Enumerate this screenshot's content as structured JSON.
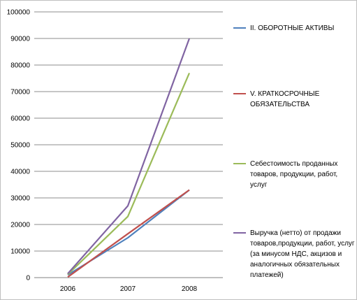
{
  "chart_data": {
    "type": "line",
    "x": [
      "2006",
      "2007",
      "2008"
    ],
    "ylim": [
      0,
      100000
    ],
    "yticks": [
      "0",
      "10000",
      "20000",
      "30000",
      "40000",
      "50000",
      "60000",
      "70000",
      "80000",
      "90000",
      "100000"
    ],
    "grid": true,
    "legend_position": "right",
    "series": [
      {
        "name": "II. ОБОРОТНЫЕ АКТИВЫ",
        "color": "#4f81bd",
        "values": [
          1000,
          15000,
          33000
        ]
      },
      {
        "name": "V. КРАТКОСРОЧНЫЕ ОБЯЗАТЕЛЬСТВА",
        "color": "#c0504d",
        "values": [
          200,
          16500,
          33000
        ]
      },
      {
        "name": "Себестоимость проданных товаров, продукции, работ, услуг",
        "color": "#9bbb59",
        "values": [
          1200,
          23000,
          77000
        ]
      },
      {
        "name": "Выручка (нетто) от продажи товаров,продукции, работ, услуг (за минусом НДС, акцизов и аналогичных обязательных платежей)",
        "color": "#8064a2",
        "values": [
          1500,
          27000,
          90000
        ]
      }
    ]
  }
}
